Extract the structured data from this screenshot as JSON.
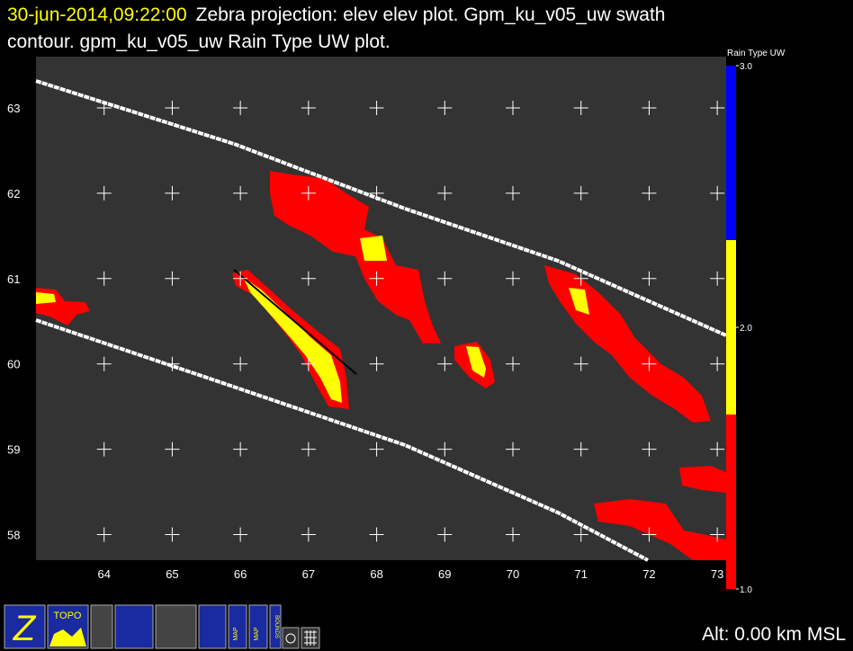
{
  "title": {
    "time": "30-jun-2014,09:22:00",
    "text": "Zebra projection: elev elev  plot.  Gpm_ku_v05_uw swath",
    "line2": "contour.  gpm_ku_v05_uw Rain Type UW  plot."
  },
  "map": {
    "xlim": [
      63,
      73.13
    ],
    "ylim": [
      57.7,
      63.6
    ],
    "xticks": [
      64,
      65,
      66,
      67,
      68,
      69,
      70,
      71,
      72,
      73
    ],
    "yticks": [
      58,
      59,
      60,
      61,
      62,
      63
    ]
  },
  "colorbar": {
    "label": "Rain Type UW",
    "range": [
      1,
      3
    ],
    "colors": [
      "#ff0000",
      "#ffff00",
      "#0000ff"
    ],
    "ticks": [
      {
        "value": 3,
        "label": "3.0"
      },
      {
        "value": 2,
        "label": "2.0"
      },
      {
        "value": 1,
        "label": "1.0"
      }
    ]
  },
  "status": "Alt: 0.00 km MSL",
  "toolbar": [
    "TOPO",
    "MAP",
    "MAP",
    "BOUNDS"
  ]
}
